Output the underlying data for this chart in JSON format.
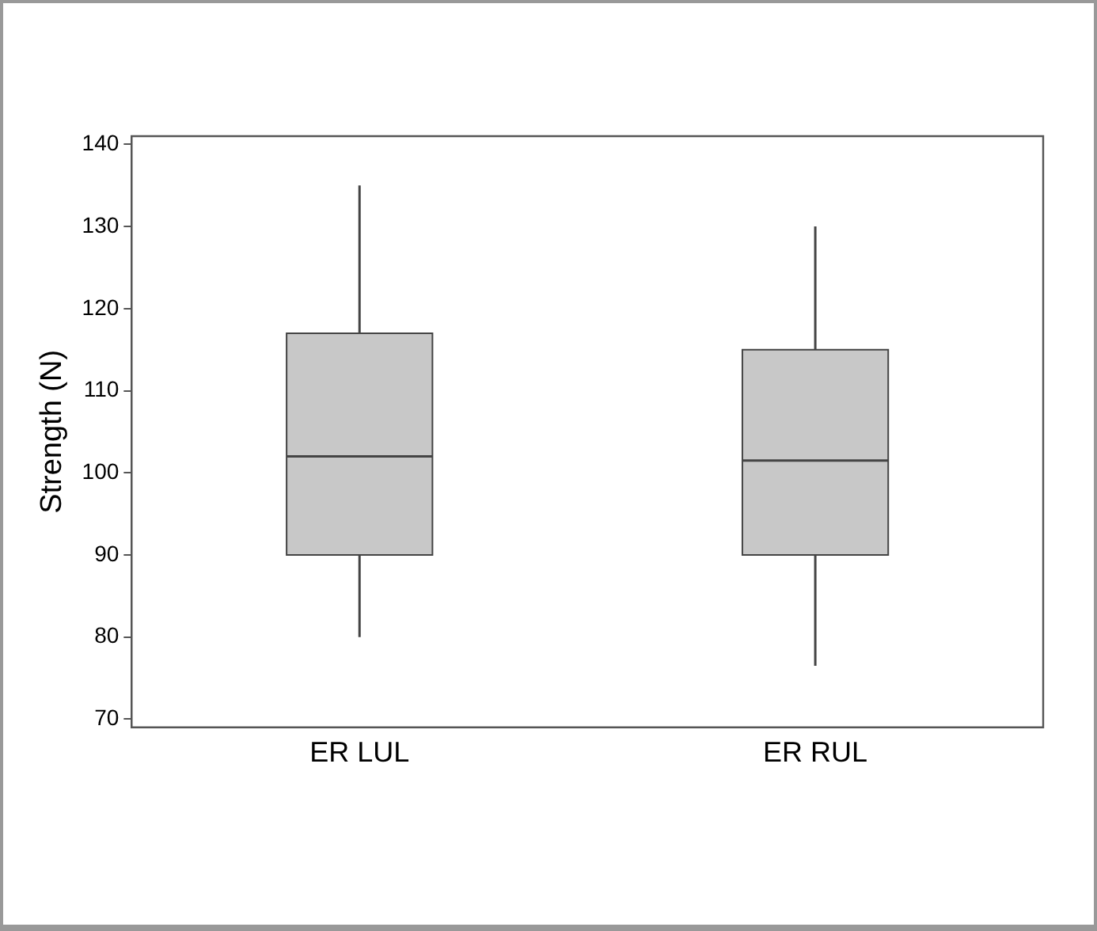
{
  "chart_data": {
    "type": "box",
    "ylabel": "Strength (N)",
    "categories": [
      "ER LUL",
      "ER RUL"
    ],
    "color": "#c8c8c8",
    "boxes": [
      {
        "low": 80,
        "q1": 90,
        "median": 102,
        "q3": 117,
        "high": 135
      },
      {
        "low": 76.5,
        "q1": 90,
        "median": 101.5,
        "q3": 115,
        "high": 130
      }
    ],
    "ylim": [
      69,
      141
    ],
    "yticks": [
      70,
      80,
      90,
      100,
      110,
      120,
      130,
      140
    ],
    "grid": false,
    "legend": false
  }
}
